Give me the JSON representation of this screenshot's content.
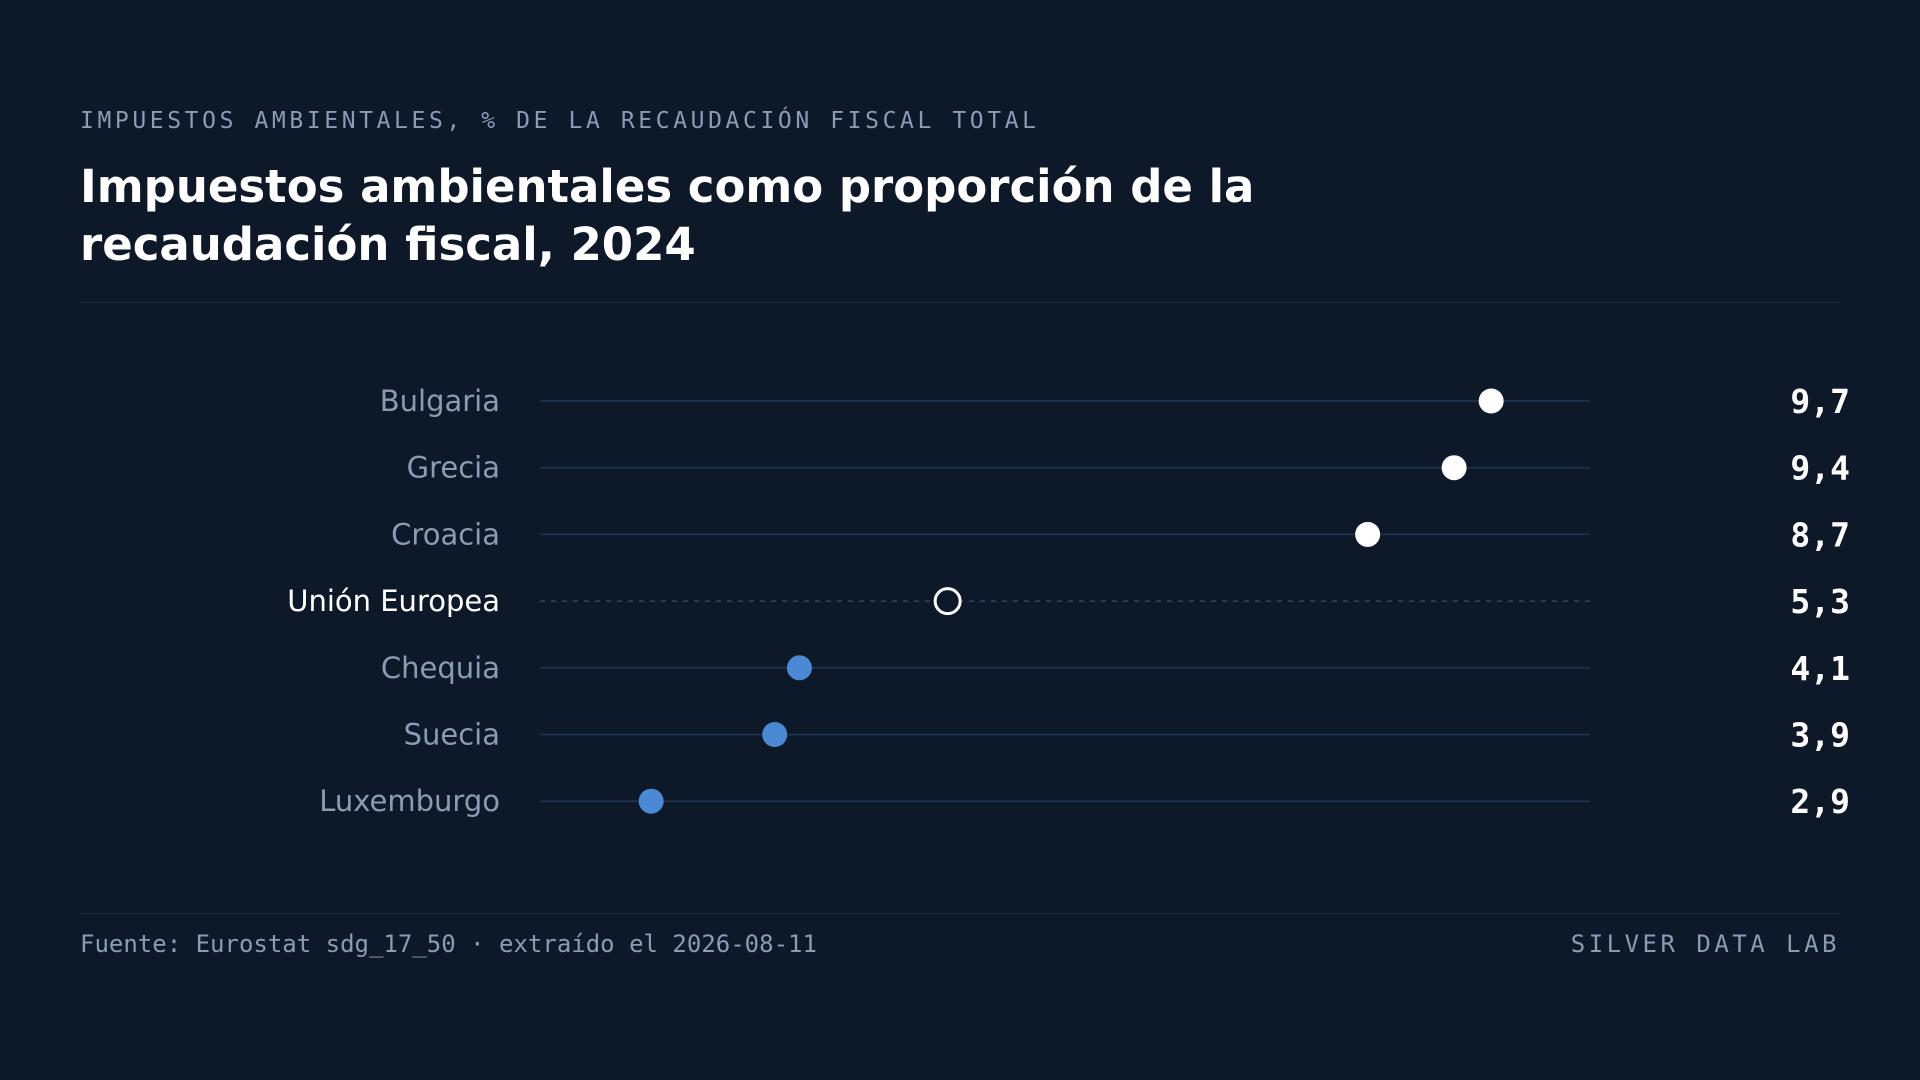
{
  "kicker": "IMPUESTOS AMBIENTALES, % DE LA RECAUDACIÓN FISCAL TOTAL",
  "title_lines": [
    "Impuestos ambientales como proporción de la",
    "recaudación fiscal, 2024"
  ],
  "footer": {
    "source": "Fuente: Eurostat sdg_17_50 · extraído el 2026-08-11",
    "brand": "SILVER DATA LAB"
  },
  "colors": {
    "background": "#0d1929",
    "high": "#ffffff",
    "low": "#4a8ad4",
    "reference": "#ffffff",
    "track": "#1f3550",
    "label_muted": "#8a9bb4",
    "label_highlight": "#ffffff"
  },
  "chart_data": {
    "type": "dot",
    "xlim": [
      2.0,
      10.5
    ],
    "grid": false,
    "categories": [
      "Bulgaria",
      "Grecia",
      "Croacia",
      "Unión Europea",
      "Chequia",
      "Suecia",
      "Luxemburgo"
    ],
    "values": [
      9.7,
      9.4,
      8.7,
      5.3,
      4.1,
      3.9,
      2.9
    ],
    "value_labels": [
      "9,7",
      "9,4",
      "8,7",
      "5,3",
      "4,1",
      "3,9",
      "2,9"
    ],
    "groups": [
      "high",
      "high",
      "high",
      "reference",
      "low",
      "low",
      "low"
    ]
  }
}
